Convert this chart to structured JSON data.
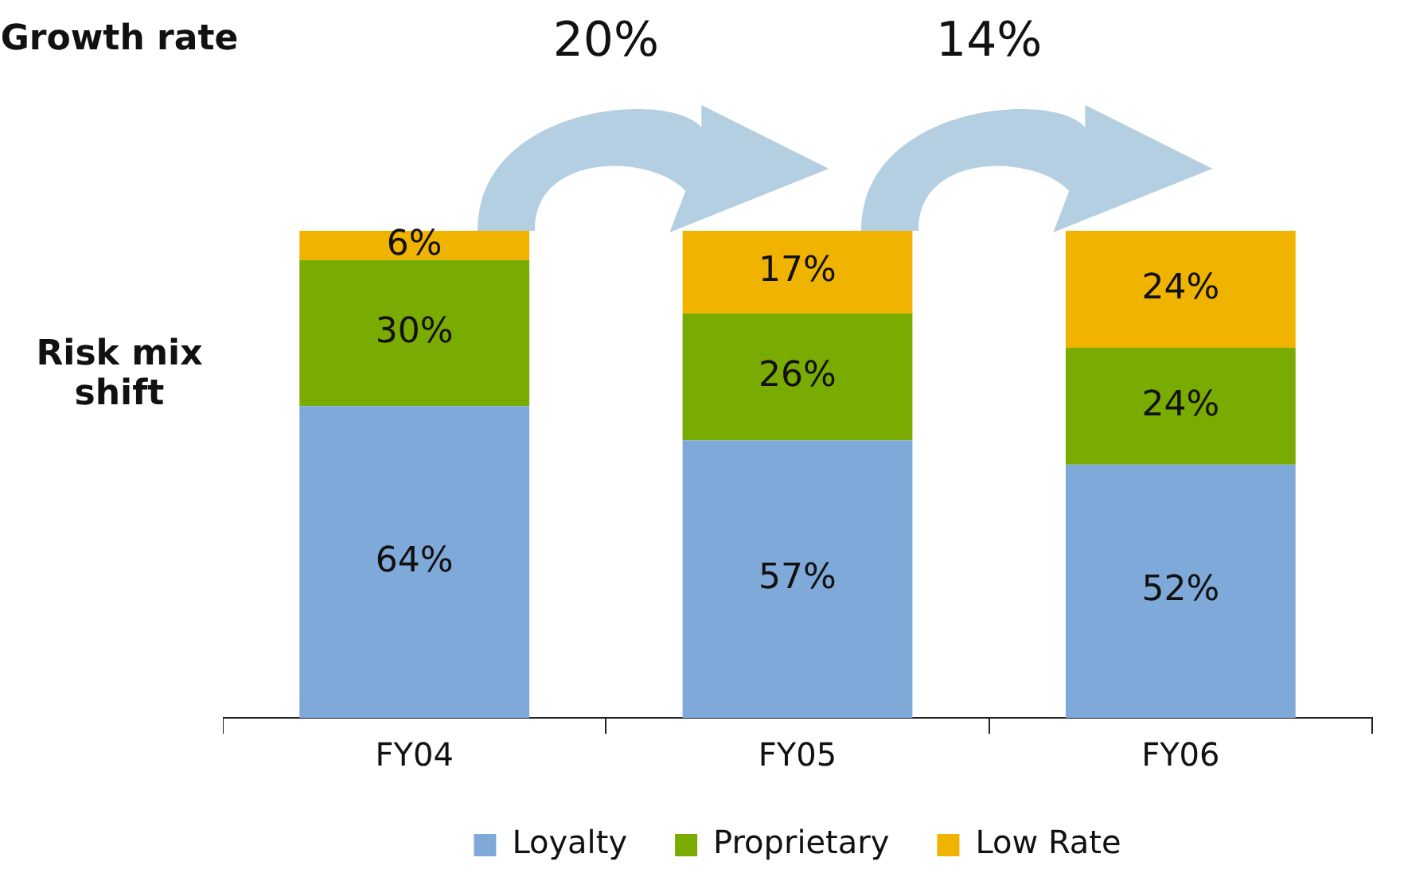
{
  "chart_data": {
    "type": "bar",
    "stacked": true,
    "categories": [
      "FY04",
      "FY05",
      "FY06"
    ],
    "series": [
      {
        "name": "Loyalty",
        "color": "#7fa9d8",
        "values": [
          64,
          57,
          52
        ],
        "value_labels": [
          "64%",
          "57%",
          "52%"
        ]
      },
      {
        "name": "Proprietary",
        "color": "#7aab00",
        "values": [
          30,
          26,
          24
        ],
        "value_labels": [
          "30%",
          "26%",
          "24%"
        ]
      },
      {
        "name": "Low Rate",
        "color": "#f0b400",
        "values": [
          6,
          17,
          24
        ],
        "value_labels": [
          "6%",
          "17%",
          "24%"
        ]
      }
    ],
    "annotations": [
      "Growth rate",
      "Risk mix shift",
      "20%",
      "14%"
    ],
    "legend": "bottom",
    "grid": false,
    "tick_labels": "x"
  }
}
